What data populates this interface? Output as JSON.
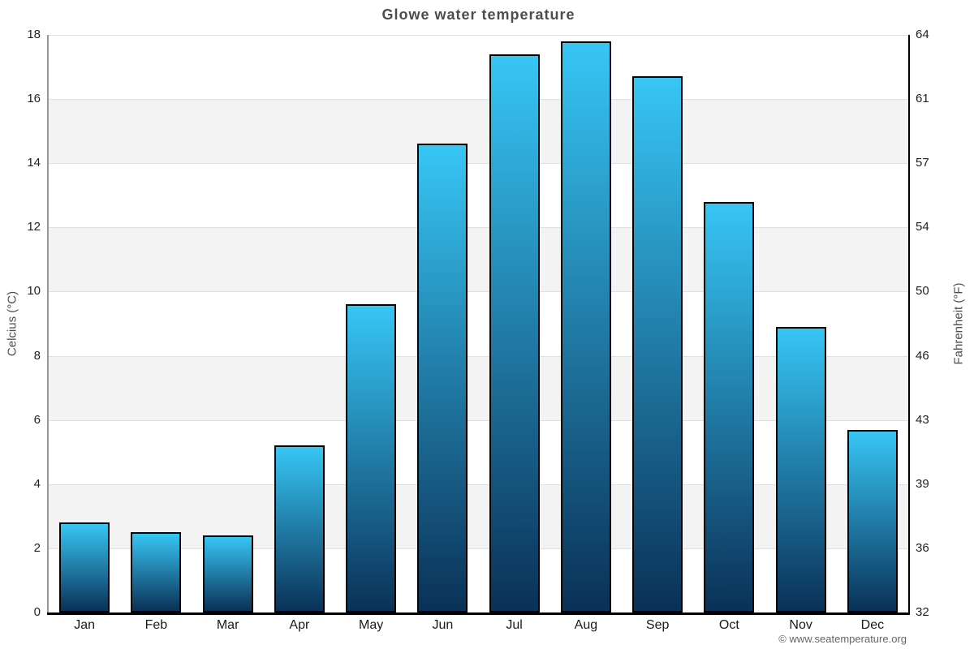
{
  "title": "Glowe water temperature",
  "footer": "© www.seatemperature.org",
  "colors": {
    "bar_gradient_top": "#37c6f5",
    "bar_gradient_bottom": "#0a3157",
    "bar_border": "#000000",
    "band_fill": "#f3f3f3",
    "gridline": "#e0e0e0",
    "title_text": "#4d4d4d",
    "axis_left_line": "#999999",
    "axis_right_line": "#000000",
    "axis_bottom_line": "#000000"
  },
  "chart_data": {
    "type": "bar",
    "title": "Glowe water temperature",
    "categories": [
      "Jan",
      "Feb",
      "Mar",
      "Apr",
      "May",
      "Jun",
      "Jul",
      "Aug",
      "Sep",
      "Oct",
      "Nov",
      "Dec"
    ],
    "values": [
      2.8,
      2.5,
      2.4,
      5.2,
      9.6,
      14.6,
      17.4,
      17.8,
      16.7,
      12.8,
      8.9,
      5.7
    ],
    "ylabel_left": "Celcius (°C)",
    "ylabel_right": "Fahrenheit (°F)",
    "ylim_left": [
      0,
      18
    ],
    "left_ticks": [
      0,
      2,
      4,
      6,
      8,
      10,
      12,
      14,
      16,
      18
    ],
    "right_tick_labels": [
      "32",
      "36",
      "39",
      "43",
      "46",
      "50",
      "54",
      "57",
      "61",
      "64"
    ],
    "grid": "horizontal-bands",
    "legend": "none"
  }
}
